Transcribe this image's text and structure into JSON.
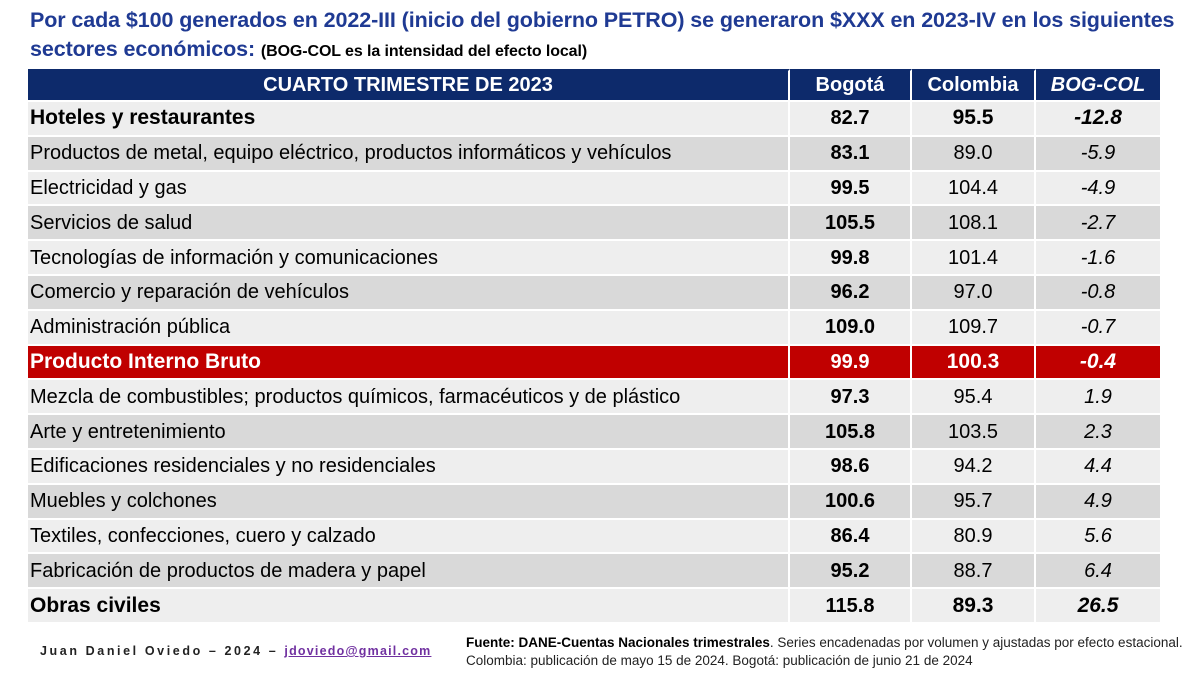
{
  "title": {
    "main": "Por cada $100 generados en 2022-III (inicio del gobierno PETRO) se generaron $XXX en 2023-IV en los siguientes sectores económicos:",
    "note": "(BOG-COL es la intensidad del efecto local)"
  },
  "table": {
    "headers": {
      "sector": "CUARTO TRIMESTRE DE 2023",
      "bogota": "Bogotá",
      "colombia": "Colombia",
      "diff": "BOG-COL"
    },
    "rows": [
      {
        "sector": "Hoteles y restaurantes",
        "bogota": "82.7",
        "colombia": "95.5",
        "diff": "-12.8"
      },
      {
        "sector": "Productos de metal, equipo eléctrico, productos informáticos y vehículos",
        "bogota": "83.1",
        "colombia": "89.0",
        "diff": "-5.9"
      },
      {
        "sector": "Electricidad y gas",
        "bogota": "99.5",
        "colombia": "104.4",
        "diff": "-4.9"
      },
      {
        "sector": "Servicios de salud",
        "bogota": "105.5",
        "colombia": "108.1",
        "diff": "-2.7"
      },
      {
        "sector": "Tecnologías de información y comunicaciones",
        "bogota": "99.8",
        "colombia": "101.4",
        "diff": "-1.6"
      },
      {
        "sector": "Comercio y reparación de vehículos",
        "bogota": "96.2",
        "colombia": "97.0",
        "diff": "-0.8"
      },
      {
        "sector": "Administración pública",
        "bogota": "109.0",
        "colombia": "109.7",
        "diff": "-0.7"
      },
      {
        "sector": "Producto Interno Bruto",
        "bogota": "99.9",
        "colombia": "100.3",
        "diff": "-0.4"
      },
      {
        "sector": "Mezcla de combustibles; productos químicos, farmacéuticos y de plástico",
        "bogota": "97.3",
        "colombia": "95.4",
        "diff": "1.9"
      },
      {
        "sector": "Arte y entretenimiento",
        "bogota": "105.8",
        "colombia": "103.5",
        "diff": "2.3"
      },
      {
        "sector": "Edificaciones residenciales y no residenciales",
        "bogota": "98.6",
        "colombia": "94.2",
        "diff": "4.4"
      },
      {
        "sector": "Muebles y colchones",
        "bogota": "100.6",
        "colombia": "95.7",
        "diff": "4.9"
      },
      {
        "sector": "Textiles, confecciones, cuero y calzado",
        "bogota": "86.4",
        "colombia": "80.9",
        "diff": "5.6"
      },
      {
        "sector": "Fabricación de productos de madera y papel",
        "bogota": "95.2",
        "colombia": "88.7",
        "diff": "6.4"
      },
      {
        "sector": "Obras civiles",
        "bogota": "115.8",
        "colombia": "89.3",
        "diff": "26.5"
      }
    ]
  },
  "footer": {
    "author": "Juan Daniel Oviedo – 2024 –",
    "email": "jdoviedo@gmail.com",
    "source_bold": "Fuente: DANE-Cuentas Nacionales trimestrales",
    "source_rest": ". Series encadenadas por volumen y ajustadas por efecto estacional. Colombia: publicación de mayo 15 de 2024. Bogotá: publicación de junio 21 de 2024"
  },
  "colors": {
    "title": "#1f3a93",
    "header_bg": "#0d2a6b",
    "highlight_row": "#c00000",
    "row_light": "#eeeeee",
    "row_dark": "#d9d9d9",
    "email": "#7030a0"
  }
}
